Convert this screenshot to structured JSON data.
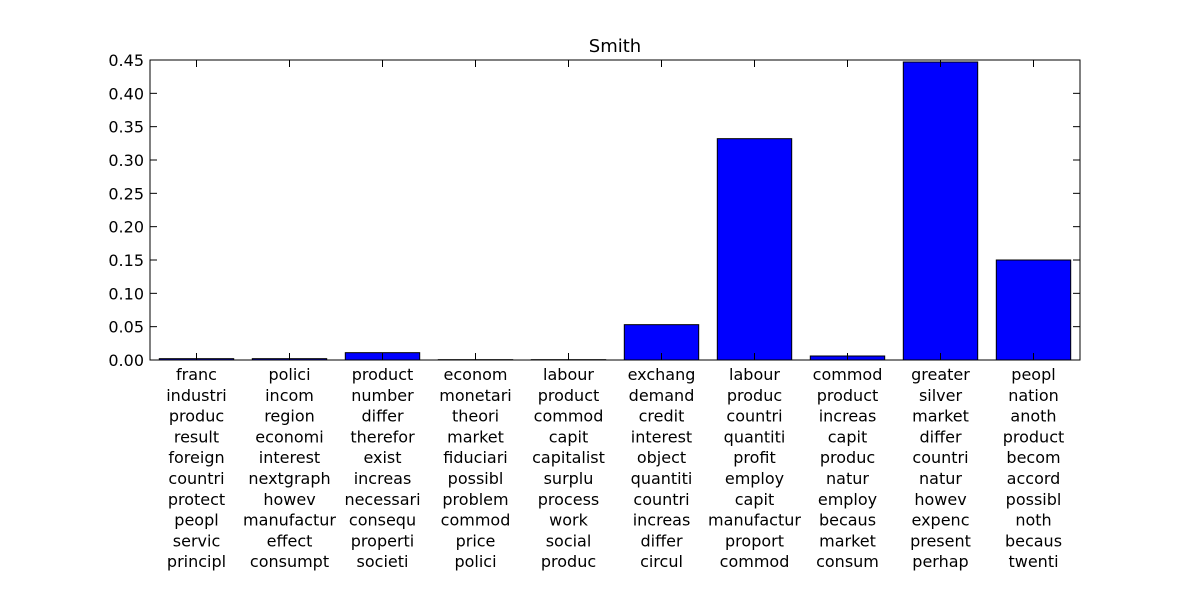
{
  "chart_data": {
    "type": "bar",
    "title": "Smith",
    "xlabel": "",
    "ylabel": "",
    "ylim": [
      0,
      0.45
    ],
    "yticks": [
      "0.00",
      "0.05",
      "0.10",
      "0.15",
      "0.20",
      "0.25",
      "0.30",
      "0.35",
      "0.40",
      "0.45"
    ],
    "bar_color": "#0000ff",
    "categories": [
      [
        "franc",
        "industri",
        "produc",
        "result",
        "foreign",
        "countri",
        "protect",
        "peopl",
        "servic",
        "principl"
      ],
      [
        "polici",
        "incom",
        "region",
        "economi",
        "interest",
        "nextgraph",
        "howev",
        "manufactur",
        "effect",
        "consumpt"
      ],
      [
        "product",
        "number",
        "differ",
        "therefor",
        "exist",
        "increas",
        "necessari",
        "consequ",
        "properti",
        "societi"
      ],
      [
        "econom",
        "monetari",
        "theori",
        "market",
        "fiduciari",
        "possibl",
        "problem",
        "commod",
        "price",
        "polici"
      ],
      [
        "labour",
        "product",
        "commod",
        "capit",
        "capitalist",
        "surplu",
        "process",
        "work",
        "social",
        "produc"
      ],
      [
        "exchang",
        "demand",
        "credit",
        "interest",
        "object",
        "quantiti",
        "countri",
        "increas",
        "differ",
        "circul"
      ],
      [
        "labour",
        "produc",
        "countri",
        "quantiti",
        "profit",
        "employ",
        "capit",
        "manufactur",
        "proport",
        "commod"
      ],
      [
        "commod",
        "product",
        "increas",
        "capit",
        "produc",
        "natur",
        "employ",
        "becaus",
        "market",
        "consum"
      ],
      [
        "greater",
        "silver",
        "market",
        "differ",
        "countri",
        "natur",
        "howev",
        "expenc",
        "present",
        "perhap"
      ],
      [
        "peopl",
        "nation",
        "anoth",
        "product",
        "becom",
        "accord",
        "possibl",
        "noth",
        "becaus",
        "twenti"
      ]
    ],
    "values": [
      0.002,
      0.002,
      0.011,
      0.0005,
      0.0005,
      0.053,
      0.332,
      0.006,
      0.447,
      0.15
    ]
  }
}
